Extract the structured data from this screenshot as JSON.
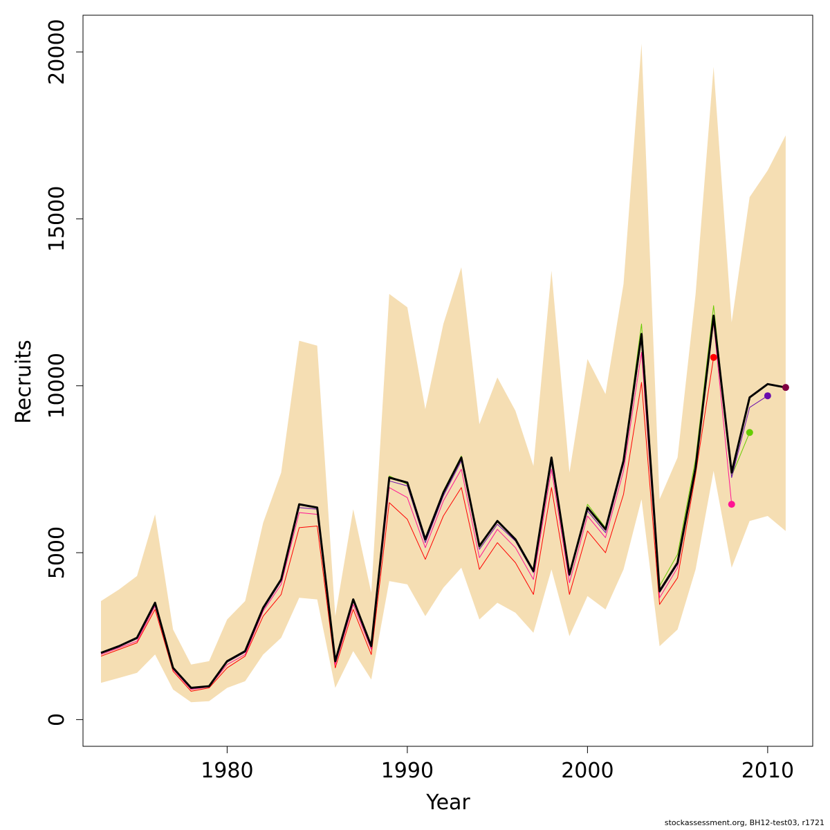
{
  "chart_data": {
    "type": "line",
    "xlabel": "Year",
    "ylabel": "Recruits",
    "xlim": [
      1972,
      2012.5
    ],
    "ylim": [
      -800,
      21100
    ],
    "x_ticks": [
      1980,
      1990,
      2000,
      2010
    ],
    "y_ticks": [
      0,
      5000,
      10000,
      15000,
      20000
    ],
    "x_tick_labels": [
      "1980",
      "1990",
      "2000",
      "2010"
    ],
    "y_tick_labels": [
      "0",
      "5000",
      "10000",
      "15000",
      "20000"
    ],
    "colors": {
      "band": "#f5deb3",
      "main": "#000000",
      "peel_2007": "#ff0000",
      "peel_2008": "#ff1493",
      "peel_2009": "#66cc00",
      "peel_2010": "#6a0dad",
      "peel_2011": "#800040"
    },
    "confidence_band": {
      "x": [
        1973,
        1974,
        1975,
        1976,
        1977,
        1978,
        1979,
        1980,
        1981,
        1982,
        1983,
        1984,
        1985,
        1986,
        1987,
        1988,
        1989,
        1990,
        1991,
        1992,
        1993,
        1994,
        1995,
        1996,
        1997,
        1998,
        1999,
        2000,
        2001,
        2002,
        2003,
        2004,
        2005,
        2006,
        2007,
        2008,
        2009,
        2010,
        2011
      ],
      "lower": [
        1100,
        1250,
        1400,
        1950,
        900,
        520,
        550,
        950,
        1150,
        1950,
        2450,
        3650,
        3600,
        950,
        2050,
        1200,
        4150,
        4050,
        3100,
        3950,
        4550,
        3000,
        3500,
        3200,
        2600,
        4500,
        2500,
        3700,
        3300,
        4500,
        6600,
        2200,
        2700,
        4500,
        7450,
        4550,
        5950,
        6100,
        5650
      ],
      "upper": [
        3550,
        3900,
        4300,
        6150,
        2700,
        1650,
        1750,
        3000,
        3550,
        5900,
        7400,
        11350,
        11200,
        3100,
        6300,
        3800,
        12750,
        12350,
        9300,
        11850,
        13550,
        8850,
        10250,
        9250,
        7600,
        13450,
        7400,
        10800,
        9750,
        13050,
        20250,
        6600,
        7850,
        12750,
        19550,
        11900,
        15650,
        16450,
        17500
      ]
    },
    "series": [
      {
        "name": "",
        "color": "#000000",
        "x": [
          1973,
          1974,
          1975,
          1976,
          1977,
          1978,
          1979,
          1980,
          1981,
          1982,
          1983,
          1984,
          1985,
          1986,
          1987,
          1988,
          1989,
          1990,
          1991,
          1992,
          1993,
          1994,
          1995,
          1996,
          1997,
          1998,
          1999,
          2000,
          2001,
          2002,
          2003,
          2004,
          2005,
          2006,
          2007,
          2008,
          2009,
          2010,
          2011
        ],
        "values": [
          2000,
          2200,
          2450,
          3500,
          1550,
          950,
          1000,
          1750,
          2050,
          3350,
          4200,
          6450,
          6350,
          1750,
          3600,
          2200,
          7250,
          7100,
          5400,
          6800,
          7850,
          5200,
          5950,
          5400,
          4450,
          7850,
          4350,
          6350,
          5700,
          7750,
          11550,
          3850,
          4700,
          7550,
          12100,
          7400,
          9650,
          10050,
          9950
        ]
      },
      {
        "name": "",
        "color": "#ff0000",
        "x": [
          1973,
          1974,
          1975,
          1976,
          1977,
          1978,
          1979,
          1980,
          1981,
          1982,
          1983,
          1984,
          1985,
          1986,
          1987,
          1988,
          1989,
          1990,
          1991,
          1992,
          1993,
          1994,
          1995,
          1996,
          1997,
          1998,
          1999,
          2000,
          2001,
          2002,
          2003,
          2004,
          2005,
          2006,
          2007
        ],
        "values": [
          1900,
          2100,
          2300,
          3300,
          1450,
          850,
          950,
          1550,
          1900,
          3100,
          3750,
          5750,
          5800,
          1550,
          3300,
          1950,
          6500,
          6000,
          4800,
          6100,
          6950,
          4500,
          5300,
          4700,
          3750,
          6950,
          3750,
          5650,
          5000,
          6750,
          10100,
          3450,
          4250,
          7350,
          10850
        ]
      },
      {
        "name": "",
        "color": "#ff1493",
        "x": [
          1973,
          1974,
          1975,
          1976,
          1977,
          1978,
          1979,
          1980,
          1981,
          1982,
          1983,
          1984,
          1985,
          1986,
          1987,
          1988,
          1989,
          1990,
          1991,
          1992,
          1993,
          1994,
          1995,
          1996,
          1997,
          1998,
          1999,
          2000,
          2001,
          2002,
          2003,
          2004,
          2005,
          2006,
          2007,
          2008
        ],
        "values": [
          1950,
          2150,
          2350,
          3400,
          1500,
          900,
          980,
          1650,
          1950,
          3250,
          4050,
          6200,
          6150,
          1650,
          3450,
          2100,
          6950,
          6650,
          5150,
          6550,
          7500,
          4850,
          5700,
          5150,
          4200,
          7500,
          4100,
          6100,
          5450,
          7450,
          11000,
          3650,
          4550,
          7500,
          11900,
          6450
        ]
      },
      {
        "name": "",
        "color": "#66cc00",
        "x": [
          1973,
          1974,
          1975,
          1976,
          1977,
          1978,
          1979,
          1980,
          1981,
          1982,
          1983,
          1984,
          1985,
          1986,
          1987,
          1988,
          1989,
          1990,
          1991,
          1992,
          1993,
          1994,
          1995,
          1996,
          1997,
          1998,
          1999,
          2000,
          2001,
          2002,
          2003,
          2004,
          2005,
          2006,
          2007,
          2008,
          2009
        ],
        "values": [
          2000,
          2200,
          2450,
          3500,
          1550,
          950,
          1000,
          1750,
          2050,
          3350,
          4200,
          6450,
          6350,
          1750,
          3600,
          2200,
          7300,
          7050,
          5400,
          6850,
          7900,
          5150,
          5950,
          5400,
          4450,
          7800,
          4350,
          6450,
          5750,
          7800,
          11850,
          4000,
          4950,
          7800,
          12400,
          7300,
          8600
        ]
      },
      {
        "name": "",
        "color": "#6a0dad",
        "x": [
          1973,
          1974,
          1975,
          1976,
          1977,
          1978,
          1979,
          1980,
          1981,
          1982,
          1983,
          1984,
          1985,
          1986,
          1987,
          1988,
          1989,
          1990,
          1991,
          1992,
          1993,
          1994,
          1995,
          1996,
          1997,
          1998,
          1999,
          2000,
          2001,
          2002,
          2003,
          2004,
          2005,
          2006,
          2007,
          2008,
          2009,
          2010
        ],
        "values": [
          1980,
          2180,
          2420,
          3450,
          1530,
          930,
          990,
          1720,
          2020,
          3300,
          4150,
          6350,
          6300,
          1720,
          3550,
          2180,
          7150,
          7000,
          5300,
          6700,
          7750,
          5100,
          5850,
          5350,
          4400,
          7700,
          4300,
          6250,
          5600,
          7650,
          11400,
          3800,
          4650,
          7500,
          11950,
          7250,
          9350,
          9700
        ]
      },
      {
        "name": "",
        "color": "#800040",
        "x": [
          1973,
          1974,
          1975,
          1976,
          1977,
          1978,
          1979,
          1980,
          1981,
          1982,
          1983,
          1984,
          1985,
          1986,
          1987,
          1988,
          1989,
          1990,
          1991,
          1992,
          1993,
          1994,
          1995,
          1996,
          1997,
          1998,
          1999,
          2000,
          2001,
          2002,
          2003,
          2004,
          2005,
          2006,
          2007,
          2008,
          2009,
          2010,
          2011
        ],
        "values": [
          1990,
          2190,
          2440,
          3480,
          1540,
          940,
          995,
          1740,
          2040,
          3340,
          4190,
          6430,
          6340,
          1740,
          3590,
          2190,
          7230,
          7090,
          5390,
          6790,
          7840,
          5190,
          5940,
          5390,
          4440,
          7840,
          4340,
          6340,
          5690,
          7740,
          11540,
          3840,
          4690,
          7540,
          12080,
          7390,
          9640,
          10040,
          9950
        ]
      }
    ],
    "end_points": [
      {
        "x": 2007,
        "y": 10850,
        "color": "#ff0000"
      },
      {
        "x": 2008,
        "y": 6450,
        "color": "#ff1493"
      },
      {
        "x": 2009,
        "y": 8600,
        "color": "#66cc00"
      },
      {
        "x": 2010,
        "y": 9700,
        "color": "#6a0dad"
      },
      {
        "x": 2011,
        "y": 9950,
        "color": "#800040"
      }
    ]
  },
  "footnote": "stockassessment.org, BH12-test03, r1721"
}
